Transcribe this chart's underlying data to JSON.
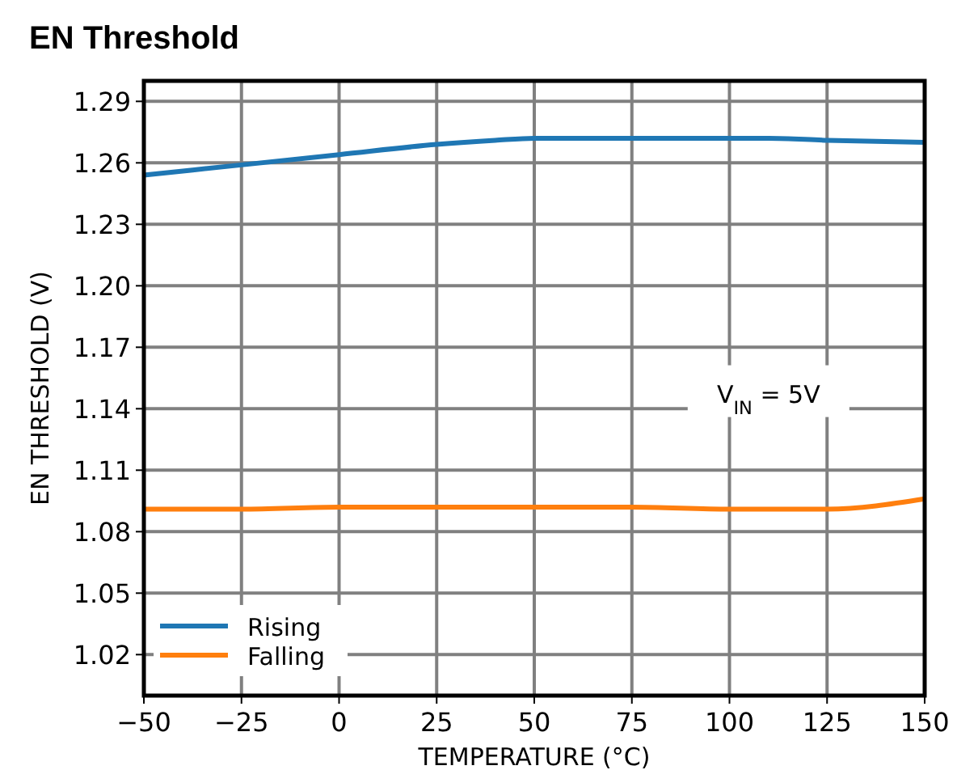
{
  "chart_data": {
    "type": "line",
    "title": "EN Threshold",
    "xlabel": "TEMPERATURE (°C)",
    "ylabel": "EN THRESHOLD (V)",
    "x": [
      -50,
      -25,
      0,
      25,
      40,
      50,
      75,
      100,
      110,
      125,
      150
    ],
    "series": [
      {
        "name": "Rising",
        "color": "#1f77b4",
        "values": [
          1.254,
          1.259,
          1.264,
          1.269,
          1.271,
          1.272,
          1.272,
          1.272,
          1.272,
          1.271,
          1.27
        ]
      },
      {
        "name": "Falling",
        "color": "#ff7f0e",
        "values": [
          1.091,
          1.091,
          1.092,
          1.092,
          1.092,
          1.092,
          1.092,
          1.091,
          1.091,
          1.091,
          1.096
        ]
      }
    ],
    "xlim": [
      -50,
      150
    ],
    "xticks": [
      -50,
      -25,
      0,
      25,
      50,
      75,
      100,
      125,
      150
    ],
    "ylim": [
      1.0,
      1.3
    ],
    "yticks": [
      1.02,
      1.05,
      1.08,
      1.11,
      1.14,
      1.17,
      {
        "value": 1.2,
        "label": "1.20"
      },
      1.23,
      1.26,
      1.29
    ],
    "annotations": [
      "V$_{IN}$ = 5V"
    ],
    "grid": true,
    "legend": "bottom left",
    "line_style": "solid",
    "marker": "none"
  }
}
